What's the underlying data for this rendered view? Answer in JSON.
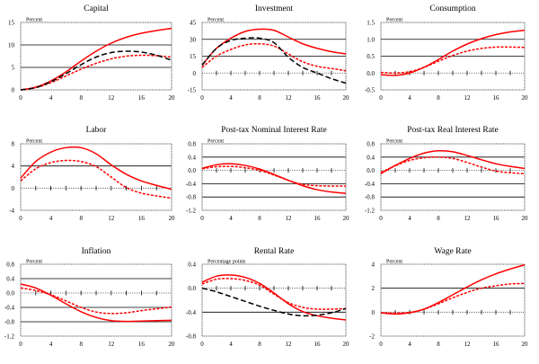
{
  "chart_data": [
    {
      "type": "line",
      "title": "Capital",
      "unit_label": "Percent",
      "xlim": [
        0,
        20
      ],
      "xticks": [
        0,
        4,
        8,
        12,
        16,
        20
      ],
      "ylim": [
        0,
        15
      ],
      "yticks": [
        0,
        5,
        10,
        15
      ],
      "ytick_labels": [
        "0",
        "5",
        "10",
        "15"
      ],
      "zero_axis_ticks": false,
      "x": [
        0,
        2,
        4,
        6,
        8,
        10,
        12,
        14,
        16,
        18,
        20
      ],
      "series": [
        {
          "name": "red-solid",
          "color": "#ff0000",
          "style": "solid",
          "values": [
            0,
            0.6,
            2.0,
            4.0,
            6.4,
            8.6,
            10.4,
            11.7,
            12.6,
            13.2,
            13.7
          ]
        },
        {
          "name": "red-dashed",
          "color": "#ff0000",
          "style": "dashed",
          "values": [
            0,
            0.5,
            1.6,
            3.1,
            4.6,
            5.9,
            6.9,
            7.5,
            7.7,
            7.6,
            7.3
          ]
        },
        {
          "name": "black-dashed",
          "color": "#000000",
          "style": "longdash",
          "values": [
            0,
            0.5,
            1.8,
            3.6,
            5.6,
            7.3,
            8.3,
            8.6,
            8.4,
            7.7,
            6.6
          ]
        }
      ]
    },
    {
      "type": "line",
      "title": "Investment",
      "unit_label": "Percent",
      "xlim": [
        0,
        20
      ],
      "xticks": [
        0,
        4,
        8,
        12,
        16,
        20
      ],
      "ylim": [
        -15,
        45
      ],
      "yticks": [
        -15,
        0,
        15,
        30,
        45
      ],
      "ytick_labels": [
        "-15",
        "0",
        "15",
        "30",
        "45"
      ],
      "zero_axis_ticks": true,
      "x": [
        0,
        2,
        4,
        6,
        8,
        10,
        12,
        14,
        16,
        18,
        20
      ],
      "series": [
        {
          "name": "red-solid",
          "color": "#ff0000",
          "style": "solid",
          "values": [
            7,
            22,
            31,
            37,
            39,
            38,
            32,
            26,
            22,
            19,
            17
          ]
        },
        {
          "name": "red-dashed",
          "color": "#ff0000",
          "style": "dashed",
          "values": [
            5,
            15,
            21,
            25,
            26,
            24,
            17,
            10,
            6,
            4,
            2
          ]
        },
        {
          "name": "black-dashed",
          "color": "#000000",
          "style": "longdash",
          "values": [
            7,
            22,
            29,
            31,
            31,
            27,
            14,
            5,
            0,
            -5,
            -9
          ]
        }
      ]
    },
    {
      "type": "line",
      "title": "Consumption",
      "unit_label": "Percent",
      "xlim": [
        0,
        20
      ],
      "xticks": [
        0,
        4,
        8,
        12,
        16,
        20
      ],
      "ylim": [
        -0.5,
        1.5
      ],
      "yticks": [
        -0.5,
        0.0,
        0.5,
        1.0,
        1.5
      ],
      "ytick_labels": [
        "-0.5",
        "0.0",
        "0.5",
        "1.0",
        "1.5"
      ],
      "zero_axis_ticks": true,
      "x": [
        0,
        2,
        4,
        6,
        8,
        10,
        12,
        14,
        16,
        18,
        20
      ],
      "series": [
        {
          "name": "red-solid",
          "color": "#ff0000",
          "style": "solid",
          "values": [
            -0.05,
            -0.07,
            0.0,
            0.17,
            0.4,
            0.65,
            0.86,
            1.02,
            1.14,
            1.22,
            1.27
          ]
        },
        {
          "name": "red-dashed",
          "color": "#ff0000",
          "style": "dashed",
          "values": [
            0.02,
            0.0,
            0.04,
            0.17,
            0.35,
            0.52,
            0.65,
            0.73,
            0.77,
            0.77,
            0.76
          ]
        }
      ]
    },
    {
      "type": "line",
      "title": "Labor",
      "unit_label": "Percent",
      "xlim": [
        0,
        20
      ],
      "xticks": [
        0,
        4,
        8,
        12,
        16,
        20
      ],
      "ylim": [
        -4,
        8
      ],
      "yticks": [
        -4,
        0,
        4,
        8
      ],
      "ytick_labels": [
        "-4",
        "0",
        "4",
        "8"
      ],
      "zero_axis_ticks": true,
      "x": [
        0,
        2,
        4,
        6,
        8,
        10,
        12,
        14,
        16,
        18,
        20
      ],
      "series": [
        {
          "name": "red-solid",
          "color": "#ff0000",
          "style": "solid",
          "values": [
            1.8,
            4.8,
            6.5,
            7.3,
            7.3,
            6.2,
            4.2,
            2.5,
            1.3,
            0.5,
            -0.2
          ]
        },
        {
          "name": "red-dashed",
          "color": "#ff0000",
          "style": "dashed",
          "values": [
            1.3,
            3.5,
            4.6,
            5.0,
            4.8,
            3.9,
            2.0,
            0.1,
            -0.9,
            -1.4,
            -1.8
          ]
        }
      ]
    },
    {
      "type": "line",
      "title": "Post-tax Nominal Interest Rate",
      "unit_label": "Percent",
      "xlim": [
        0,
        20
      ],
      "xticks": [
        0,
        4,
        8,
        12,
        16,
        20
      ],
      "ylim": [
        -1.2,
        0.8
      ],
      "yticks": [
        -1.2,
        -0.8,
        -0.4,
        0.0,
        0.4,
        0.8
      ],
      "ytick_labels": [
        "-1.2",
        "-0.8",
        "-0.4",
        "0.0",
        "0.4",
        "0.8"
      ],
      "zero_axis_ticks": true,
      "x": [
        0,
        2,
        4,
        6,
        8,
        10,
        12,
        14,
        16,
        18,
        20
      ],
      "series": [
        {
          "name": "red-solid",
          "color": "#ff0000",
          "style": "solid",
          "values": [
            0.06,
            0.17,
            0.2,
            0.15,
            0.04,
            -0.12,
            -0.3,
            -0.46,
            -0.58,
            -0.65,
            -0.69
          ]
        },
        {
          "name": "red-dashed",
          "color": "#ff0000",
          "style": "dashed",
          "values": [
            0.05,
            0.11,
            0.12,
            0.08,
            0.0,
            -0.14,
            -0.3,
            -0.42,
            -0.46,
            -0.47,
            -0.47
          ]
        }
      ]
    },
    {
      "type": "line",
      "title": "Post-tax Real Interest Rate",
      "unit_label": "Percent",
      "xlim": [
        0,
        20
      ],
      "xticks": [
        0,
        4,
        8,
        12,
        16,
        20
      ],
      "ylim": [
        -1.2,
        0.8
      ],
      "yticks": [
        -1.2,
        -0.8,
        -0.4,
        0.0,
        0.4,
        0.8
      ],
      "ytick_labels": [
        "-1.2",
        "-0.8",
        "-0.4",
        "0.0",
        "0.4",
        "0.8"
      ],
      "zero_axis_ticks": true,
      "x": [
        0,
        2,
        4,
        6,
        8,
        10,
        12,
        14,
        16,
        18,
        20
      ],
      "series": [
        {
          "name": "red-solid",
          "color": "#ff0000",
          "style": "solid",
          "values": [
            -0.1,
            0.15,
            0.36,
            0.52,
            0.59,
            0.56,
            0.45,
            0.32,
            0.2,
            0.12,
            0.06
          ]
        },
        {
          "name": "red-dashed",
          "color": "#ff0000",
          "style": "dashed",
          "values": [
            -0.06,
            0.14,
            0.3,
            0.38,
            0.4,
            0.36,
            0.24,
            0.1,
            -0.02,
            -0.07,
            -0.1
          ]
        }
      ]
    },
    {
      "type": "line",
      "title": "Inflation",
      "unit_label": "Percent",
      "xlim": [
        0,
        20
      ],
      "xticks": [
        0,
        4,
        8,
        12,
        16,
        20
      ],
      "ylim": [
        -1.2,
        0.8
      ],
      "yticks": [
        -1.2,
        -0.8,
        -0.4,
        0.0,
        0.4,
        0.8
      ],
      "ytick_labels": [
        "-1.2",
        "-0.8",
        "-0.4",
        "0.0",
        "0.4",
        "0.8"
      ],
      "zero_axis_ticks": true,
      "x": [
        0,
        2,
        4,
        6,
        8,
        10,
        12,
        14,
        16,
        18,
        20
      ],
      "series": [
        {
          "name": "red-solid",
          "color": "#ff0000",
          "style": "solid",
          "values": [
            0.25,
            0.14,
            -0.06,
            -0.3,
            -0.52,
            -0.68,
            -0.77,
            -0.79,
            -0.78,
            -0.77,
            -0.76
          ]
        },
        {
          "name": "red-dashed",
          "color": "#ff0000",
          "style": "dashed",
          "values": [
            0.14,
            0.07,
            -0.05,
            -0.22,
            -0.4,
            -0.53,
            -0.57,
            -0.55,
            -0.49,
            -0.44,
            -0.39
          ]
        }
      ]
    },
    {
      "type": "line",
      "title": "Rental Rate",
      "unit_label": "Percentage points",
      "xlim": [
        0,
        20
      ],
      "xticks": [
        0,
        4,
        8,
        12,
        16,
        20
      ],
      "ylim": [
        -0.8,
        0.4
      ],
      "yticks": [
        -0.8,
        -0.4,
        0.0,
        0.4
      ],
      "ytick_labels": [
        "-0.8",
        "-0.4",
        "0.0",
        "0.4"
      ],
      "zero_axis_ticks": true,
      "x": [
        0,
        2,
        4,
        6,
        8,
        10,
        12,
        14,
        16,
        18,
        20
      ],
      "series": [
        {
          "name": "red-solid",
          "color": "#ff0000",
          "style": "solid",
          "values": [
            0.1,
            0.2,
            0.22,
            0.18,
            0.08,
            -0.08,
            -0.26,
            -0.39,
            -0.46,
            -0.5,
            -0.53
          ]
        },
        {
          "name": "red-dashed",
          "color": "#ff0000",
          "style": "dashed",
          "values": [
            0.07,
            0.15,
            0.16,
            0.13,
            0.05,
            -0.1,
            -0.24,
            -0.32,
            -0.35,
            -0.35,
            -0.34
          ]
        },
        {
          "name": "black-dashed",
          "color": "#000000",
          "style": "longdash",
          "values": [
            0.0,
            -0.06,
            -0.14,
            -0.22,
            -0.3,
            -0.37,
            -0.43,
            -0.46,
            -0.45,
            -0.41,
            -0.34
          ]
        }
      ]
    },
    {
      "type": "line",
      "title": "Wage Rate",
      "unit_label": "Percent",
      "xlim": [
        0,
        20
      ],
      "xticks": [
        0,
        4,
        8,
        12,
        16,
        20
      ],
      "ylim": [
        -2,
        4
      ],
      "yticks": [
        -2,
        0,
        2,
        4
      ],
      "ytick_labels": [
        "-2",
        "0",
        "2",
        "4"
      ],
      "zero_axis_ticks": true,
      "x": [
        0,
        2,
        4,
        6,
        8,
        10,
        12,
        14,
        16,
        18,
        20
      ],
      "series": [
        {
          "name": "red-solid",
          "color": "#ff0000",
          "style": "solid",
          "values": [
            -0.05,
            -0.15,
            -0.05,
            0.25,
            0.8,
            1.45,
            2.1,
            2.7,
            3.2,
            3.6,
            3.95
          ]
        },
        {
          "name": "red-dashed",
          "color": "#ff0000",
          "style": "dashed",
          "values": [
            -0.05,
            -0.08,
            -0.02,
            0.25,
            0.7,
            1.2,
            1.65,
            2.0,
            2.2,
            2.35,
            2.4
          ]
        }
      ]
    }
  ]
}
